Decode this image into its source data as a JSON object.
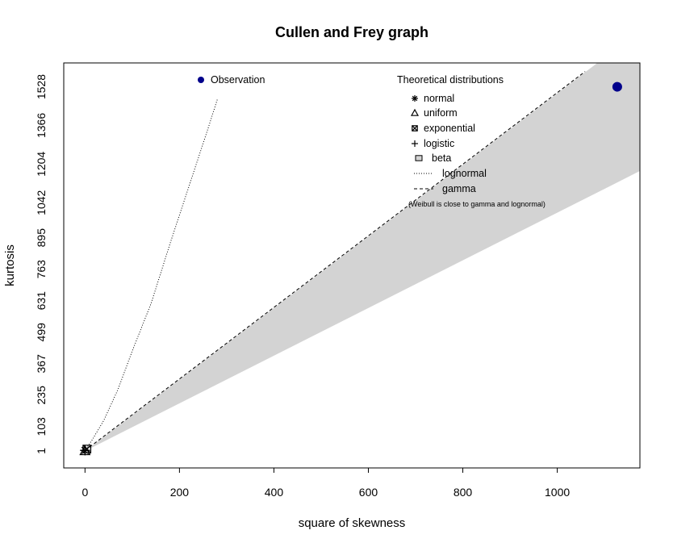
{
  "chart_data": {
    "type": "scatter",
    "title": "Cullen and Frey graph",
    "xlabel": "square of skewness",
    "ylabel": "kurtosis",
    "xlim": [
      -45,
      1175
    ],
    "ylim": [
      1628,
      -70
    ],
    "x_ticks": [
      0,
      200,
      400,
      600,
      800,
      1000
    ],
    "y_ticks": [
      1,
      103,
      235,
      367,
      499,
      631,
      763,
      895,
      1042,
      1204,
      1366,
      1528
    ],
    "observation": {
      "x": 1127,
      "y": 1528,
      "color": "#00008B"
    },
    "theoretical_points": {
      "normal": {
        "x": 0,
        "y": 3
      },
      "uniform": {
        "x": 0,
        "y": 1.8
      },
      "exponential": {
        "x": 4,
        "y": 9
      },
      "logistic": {
        "x": 0,
        "y": 4.2
      }
    },
    "beta_region": {
      "lower": [
        [
          0,
          1
        ],
        [
          1175,
          1175
        ]
      ],
      "upper": [
        [
          0,
          1
        ],
        [
          1175,
          1763
        ]
      ]
    },
    "gamma_line": [
      [
        0,
        3
      ],
      [
        1059,
        1592
      ]
    ],
    "lognormal_line": [
      [
        0,
        3
      ],
      [
        15,
        47
      ],
      [
        40,
        130
      ],
      [
        70,
        260
      ],
      [
        100,
        420
      ],
      [
        140,
        620
      ],
      [
        180,
        870
      ],
      [
        220,
        1110
      ],
      [
        260,
        1350
      ],
      [
        281,
        1480
      ]
    ],
    "legend": {
      "observation_label": "Observation",
      "theoretical_title": "Theoretical distributions",
      "items": [
        {
          "label": "normal",
          "symbol": "asterisk"
        },
        {
          "label": "uniform",
          "symbol": "triangle"
        },
        {
          "label": "exponential",
          "symbol": "boxed-x"
        },
        {
          "label": "logistic",
          "symbol": "plus"
        },
        {
          "label": "beta",
          "symbol": "grey-square"
        },
        {
          "label": "lognormal",
          "symbol": "dotted-line"
        },
        {
          "label": "gamma",
          "symbol": "dashed-line"
        }
      ],
      "note": "(Weibull is close to gamma and lognormal)"
    },
    "colors": {
      "beta_fill": "#d3d3d3",
      "observation": "#00008B",
      "bootstrap_bar": "#000000"
    }
  }
}
